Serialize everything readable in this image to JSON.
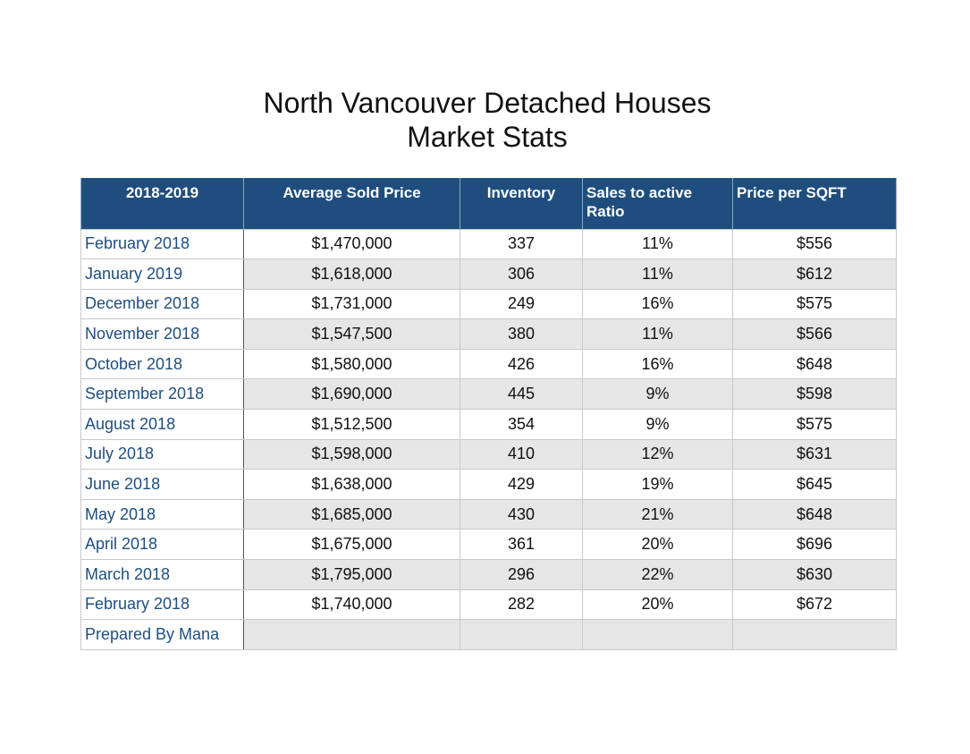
{
  "title": {
    "line1": "North Vancouver Detached Houses",
    "line2": "Market Stats"
  },
  "table": {
    "headers": [
      "2018-2019",
      "Average Sold Price",
      "Inventory",
      "Sales to active Ratio",
      "Price per SQFT"
    ],
    "rows": [
      [
        "February 2018",
        "$1,470,000",
        "337",
        "11%",
        "$556"
      ],
      [
        "January 2019",
        "$1,618,000",
        "306",
        "11%",
        "$612"
      ],
      [
        "December 2018",
        "$1,731,000",
        "249",
        "16%",
        "$575"
      ],
      [
        "November 2018",
        "$1,547,500",
        "380",
        "11%",
        "$566"
      ],
      [
        "October 2018",
        "$1,580,000",
        "426",
        "16%",
        "$648"
      ],
      [
        "September 2018",
        "$1,690,000",
        "445",
        "9%",
        "$598"
      ],
      [
        "August 2018",
        "$1,512,500",
        "354",
        "9%",
        "$575"
      ],
      [
        "July 2018",
        "$1,598,000",
        "410",
        "12%",
        "$631"
      ],
      [
        "June 2018",
        "$1,638,000",
        "429",
        "19%",
        "$645"
      ],
      [
        "May 2018",
        "$1,685,000",
        "430",
        "21%",
        "$648"
      ],
      [
        "April  2018",
        "$1,675,000",
        "361",
        "20%",
        "$696"
      ],
      [
        "March 2018",
        "$1,795,000",
        "296",
        "22%",
        "$630"
      ],
      [
        "February 2018",
        "$1,740,000",
        "282",
        "20%",
        "$672"
      ]
    ],
    "footer": "Prepared By Mana"
  },
  "colors": {
    "header_bg": "#1f4e7e",
    "month_text": "#1f4e7e",
    "stripe": "#e6e6e6"
  }
}
